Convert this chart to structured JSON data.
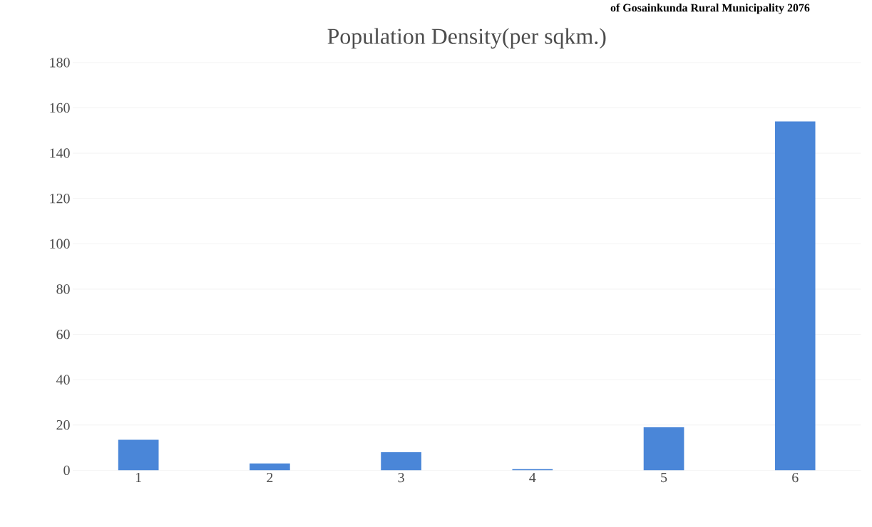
{
  "chart_data": {
    "type": "bar",
    "title": "Population Density(per sqkm.)",
    "annotations": [
      "of Gosainkunda Rural Municipality 2076"
    ],
    "categories": [
      "1",
      "2",
      "3",
      "4",
      "5",
      "6"
    ],
    "values": [
      13.5,
      3,
      8,
      0.5,
      19,
      154
    ],
    "color": "#4a86d8",
    "ylim": [
      0,
      180
    ],
    "yticks": [
      0,
      20,
      40,
      60,
      80,
      100,
      120,
      140,
      160,
      180
    ],
    "grid": "y"
  }
}
